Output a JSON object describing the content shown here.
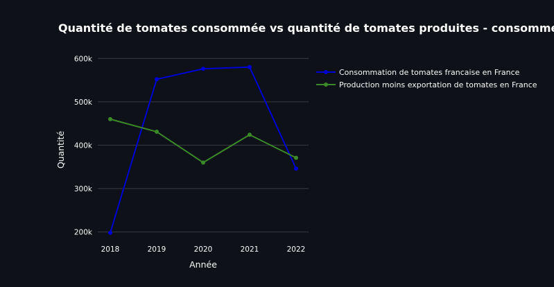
{
  "chart_data": {
    "type": "line",
    "title": "Quantité de tomates consommée vs quantité de tomates produites - consommées",
    "xlabel": "Année",
    "ylabel": "Quantité",
    "x": [
      2018,
      2019,
      2020,
      2021,
      2022
    ],
    "x_tick_labels": [
      "2018",
      "2019",
      "2020",
      "2021",
      "2022"
    ],
    "y_ticks": [
      200000,
      300000,
      400000,
      500000,
      600000
    ],
    "y_tick_labels": [
      "200k",
      "300k",
      "400k",
      "500k",
      "600k"
    ],
    "ylim": [
      185000,
      610000
    ],
    "grid": true,
    "legend_position": "top-right",
    "series": [
      {
        "name": "Consommation de tomates francaise en France",
        "color": "#0000d6",
        "values": [
          198000,
          552000,
          576000,
          580000,
          346000
        ]
      },
      {
        "name": "Production moins exportation de tomates en France",
        "color": "#3b8a2a",
        "values": [
          460000,
          431000,
          360000,
          424000,
          371000
        ]
      }
    ]
  }
}
